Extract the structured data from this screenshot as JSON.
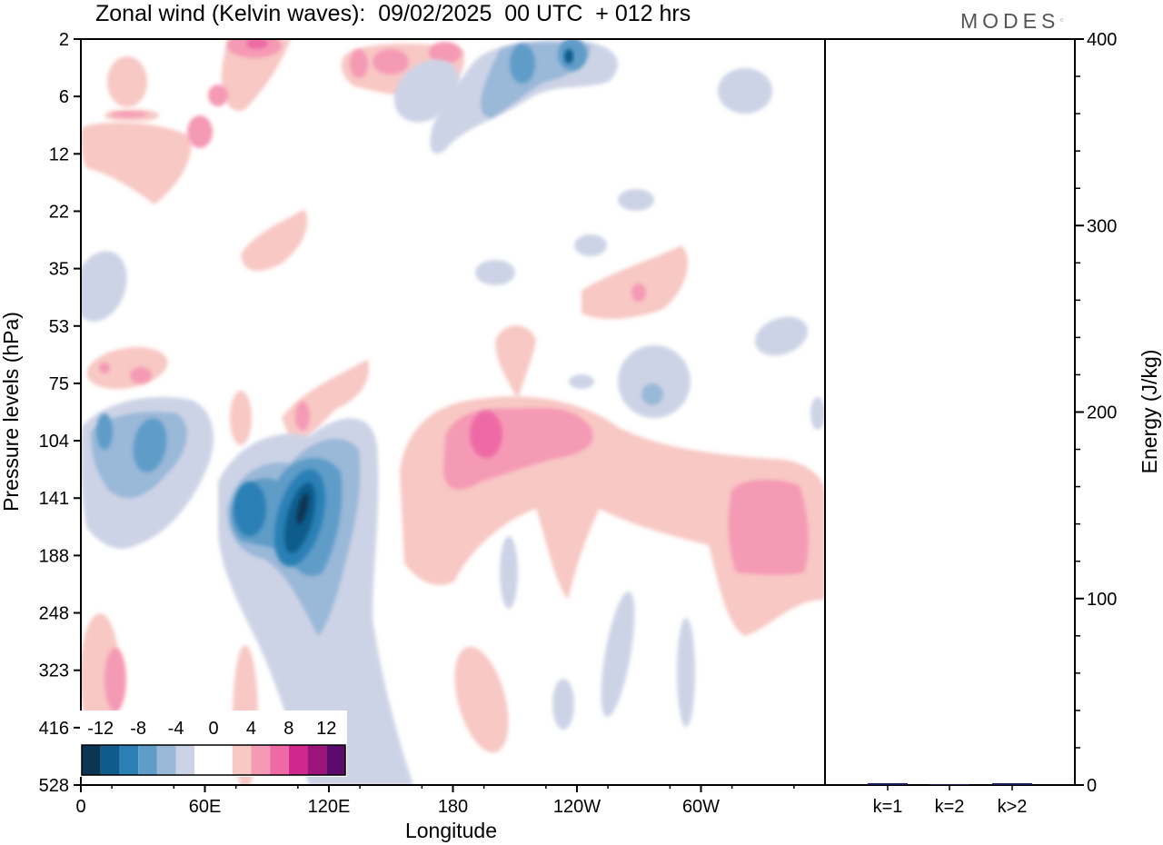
{
  "title": "Zonal wind (Kelvin waves):  09/02/2025  00 UTC  + 012 hrs",
  "brand": "MODES",
  "chart_data": [
    {
      "type": "heatmap",
      "title": "Zonal wind (Kelvin waves):  09/02/2025  00 UTC  + 012 hrs",
      "xlabel": "Longitude",
      "ylabel": "Pressure levels (hPa)",
      "x_ticks": [
        "0",
        "60E",
        "120E",
        "180",
        "120W",
        "60W"
      ],
      "x_tick_degrees": [
        0,
        60,
        120,
        180,
        240,
        300
      ],
      "xlim": [
        0,
        360
      ],
      "y_ticks": [
        "2",
        "6",
        "12",
        "22",
        "35",
        "53",
        "75",
        "104",
        "141",
        "188",
        "248",
        "323",
        "416",
        "528"
      ],
      "y_scale": "model levels (nonlinear)",
      "colorbar": {
        "labels": [
          "-12",
          "-8",
          "-4",
          "0",
          "4",
          "8",
          "12"
        ],
        "colors": [
          "#0b3552",
          "#0f5b8b",
          "#2a80b5",
          "#5f9cc8",
          "#9ab8d8",
          "#cdd3e6",
          "#ffffff",
          "#ffffff",
          "#f8c8c4",
          "#f59ab5",
          "#ee6aa6",
          "#d0278d",
          "#9c137a",
          "#5c0a6a"
        ]
      },
      "features": [
        {
          "sign": "negative",
          "lon": 108,
          "level": "141",
          "peak": -14
        },
        {
          "sign": "negative",
          "lon": 82,
          "level": "141",
          "peak": -10
        },
        {
          "sign": "negative",
          "lon": 30,
          "level": "104",
          "peak": -8
        },
        {
          "sign": "negative",
          "lon": 10,
          "level": "104",
          "peak": -8
        },
        {
          "sign": "negative",
          "lon": 224,
          "level": "2",
          "peak": -10
        },
        {
          "sign": "negative",
          "lon": 200,
          "level": "2",
          "peak": -8
        },
        {
          "sign": "positive",
          "lon": 195,
          "level": "104",
          "peak": 9
        },
        {
          "sign": "positive",
          "lon": 325,
          "level": "141",
          "peak": 6
        },
        {
          "sign": "positive",
          "lon": 15,
          "level": "323",
          "peak": 6
        },
        {
          "sign": "positive",
          "lon": 85,
          "level": "2",
          "peak": 6
        },
        {
          "sign": "positive",
          "lon": 170,
          "level": "2",
          "peak": 6
        }
      ]
    },
    {
      "type": "bar",
      "ylabel": "Energy (J/kg)",
      "categories": [
        "k=1",
        "k=2",
        "k>2"
      ],
      "values": [
        1,
        0.5,
        1
      ],
      "ylim": [
        0,
        400
      ],
      "y_ticks": [
        "0",
        "100",
        "200",
        "300",
        "400"
      ],
      "bar_color": "#1a1a5a"
    }
  ]
}
